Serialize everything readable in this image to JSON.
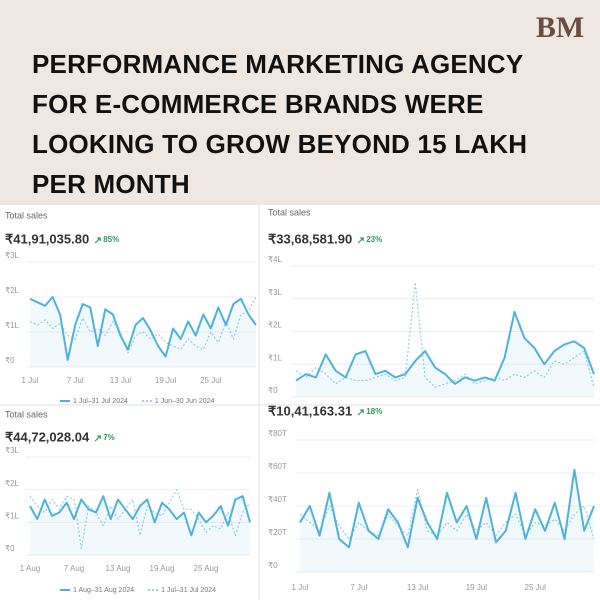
{
  "header": {
    "logo": "BM",
    "title_lines": [
      "PERFORMANCE MARKETING AGENCY",
      "FOR E-COMMERCE BRANDS WERE",
      "LOOKING TO GROW BEYOND 15 LAKH",
      "PER MONTH"
    ]
  },
  "chart_data": [
    {
      "type": "line",
      "title": "Total sales",
      "total": "₹41,91,035.80",
      "change": "85%",
      "categories": [
        "1 Jul",
        null,
        null,
        null,
        null,
        null,
        "7 Jul",
        null,
        null,
        null,
        null,
        null,
        "13 Jul",
        null,
        null,
        null,
        null,
        null,
        "19 Jul",
        null,
        null,
        null,
        null,
        null,
        "25 Jul",
        null,
        null,
        null,
        null,
        null,
        null
      ],
      "ylim": [
        0,
        300000
      ],
      "yticks": [
        {
          "value": 0,
          "label": "₹0"
        },
        {
          "value": 100000,
          "label": "₹1L"
        },
        {
          "value": 200000,
          "label": "₹2L"
        },
        {
          "value": 300000,
          "label": "₹3L"
        }
      ],
      "series": [
        {
          "name": "1 Jul–31 Jul 2024",
          "color": "#4fb3d9",
          "values": [
            195000,
            185000,
            175000,
            200000,
            150000,
            20000,
            120000,
            180000,
            170000,
            60000,
            165000,
            150000,
            90000,
            50000,
            120000,
            140000,
            105000,
            60000,
            30000,
            110000,
            80000,
            130000,
            90000,
            150000,
            110000,
            170000,
            120000,
            180000,
            195000,
            150000,
            120000
          ]
        },
        {
          "name": "1 Jun–30 Jun 2024",
          "color": "#92d0e6",
          "values": [
            130000,
            120000,
            135000,
            110000,
            125000,
            90000,
            80000,
            140000,
            100000,
            110000,
            90000,
            130000,
            100000,
            40000,
            90000,
            100000,
            80000,
            95000,
            70000,
            60000,
            50000,
            80000,
            60000,
            50000,
            100000,
            70000,
            130000,
            80000,
            150000,
            160000,
            200000
          ]
        }
      ]
    },
    {
      "type": "line",
      "title": "Total sales",
      "total": "₹33,68,581.90",
      "change": "23%",
      "ylim": [
        0,
        400000
      ],
      "yticks": [
        {
          "value": 0,
          "label": "₹0"
        },
        {
          "value": 100000,
          "label": "₹1L"
        },
        {
          "value": 200000,
          "label": "₹2L"
        },
        {
          "value": 300000,
          "label": "₹3L"
        },
        {
          "value": 400000,
          "label": "₹4L"
        }
      ],
      "series": [
        {
          "color": "#4fb3d9",
          "values": [
            50000,
            70000,
            60000,
            130000,
            80000,
            60000,
            130000,
            140000,
            70000,
            80000,
            60000,
            70000,
            110000,
            140000,
            90000,
            70000,
            40000,
            60000,
            50000,
            60000,
            50000,
            120000,
            260000,
            180000,
            150000,
            100000,
            140000,
            160000,
            170000,
            150000,
            70000
          ]
        },
        {
          "color": "#92d0e6",
          "values": [
            80000,
            60000,
            90000,
            70000,
            40000,
            60000,
            50000,
            50000,
            60000,
            70000,
            50000,
            60000,
            350000,
            60000,
            30000,
            40000,
            50000,
            70000,
            40000,
            50000,
            60000,
            50000,
            70000,
            60000,
            80000,
            60000,
            110000,
            100000,
            120000,
            140000,
            30000
          ]
        }
      ]
    },
    {
      "type": "line",
      "title": "Total sales",
      "total": "₹44,72,028.04",
      "change": "7%",
      "categories": [
        "1 Aug",
        null,
        null,
        null,
        null,
        null,
        "7 Aug",
        null,
        null,
        null,
        null,
        null,
        "13 Aug",
        null,
        null,
        null,
        null,
        null,
        "19 Aug",
        null,
        null,
        null,
        null,
        null,
        "25 Aug",
        null,
        null,
        null,
        null,
        null,
        null
      ],
      "ylim": [
        0,
        300000
      ],
      "yticks": [
        {
          "value": 0,
          "label": "₹0"
        },
        {
          "value": 100000,
          "label": "₹1L"
        },
        {
          "value": 200000,
          "label": "₹2L"
        },
        {
          "value": 300000,
          "label": "₹3L"
        }
      ],
      "series": [
        {
          "name": "1 Aug–31 Aug 2024",
          "color": "#4fb3d9",
          "values": [
            150000,
            110000,
            170000,
            120000,
            130000,
            160000,
            110000,
            170000,
            140000,
            130000,
            180000,
            110000,
            170000,
            140000,
            110000,
            150000,
            170000,
            100000,
            160000,
            140000,
            110000,
            130000,
            60000,
            130000,
            100000,
            120000,
            150000,
            90000,
            170000,
            180000,
            100000
          ]
        },
        {
          "name": "1 Jul–31 Jul 2024",
          "color": "#92d0e6",
          "values": [
            180000,
            150000,
            130000,
            170000,
            140000,
            180000,
            170000,
            20000,
            150000,
            130000,
            90000,
            150000,
            110000,
            140000,
            170000,
            60000,
            150000,
            130000,
            120000,
            160000,
            200000,
            140000,
            140000,
            110000,
            70000,
            90000,
            80000,
            130000,
            60000,
            130000,
            160000
          ]
        }
      ]
    },
    {
      "type": "line",
      "total": "₹10,41,163.31",
      "change": "18%",
      "categories": [
        "1 Jul",
        null,
        null,
        null,
        null,
        null,
        "7 Jul",
        null,
        null,
        null,
        null,
        null,
        "13 Jul",
        null,
        null,
        null,
        null,
        null,
        "19 Jul",
        null,
        null,
        null,
        null,
        null,
        "25 Jul",
        null,
        null,
        null,
        null,
        null,
        null
      ],
      "ylim": [
        0,
        80000
      ],
      "yticks": [
        {
          "value": 0,
          "label": "₹0"
        },
        {
          "value": 20000,
          "label": "₹20T"
        },
        {
          "value": 40000,
          "label": "₹40T"
        },
        {
          "value": 60000,
          "label": "₹60T"
        },
        {
          "value": 80000,
          "label": "₹80T"
        }
      ],
      "series": [
        {
          "color": "#4fb3d9",
          "values": [
            30000,
            40000,
            22000,
            48000,
            20000,
            15000,
            42000,
            25000,
            20000,
            38000,
            30000,
            15000,
            45000,
            30000,
            20000,
            48000,
            30000,
            40000,
            20000,
            45000,
            18000,
            25000,
            48000,
            20000,
            38000,
            25000,
            42000,
            20000,
            62000,
            25000,
            40000
          ]
        },
        {
          "color": "#92d0e6",
          "values": [
            35000,
            30000,
            25000,
            40000,
            28000,
            20000,
            30000,
            25000,
            22000,
            35000,
            28000,
            22000,
            50000,
            25000,
            22000,
            30000,
            25000,
            35000,
            25000,
            30000,
            22000,
            30000,
            35000,
            22000,
            30000,
            28000,
            32000,
            25000,
            35000,
            40000,
            20000
          ]
        }
      ]
    }
  ]
}
